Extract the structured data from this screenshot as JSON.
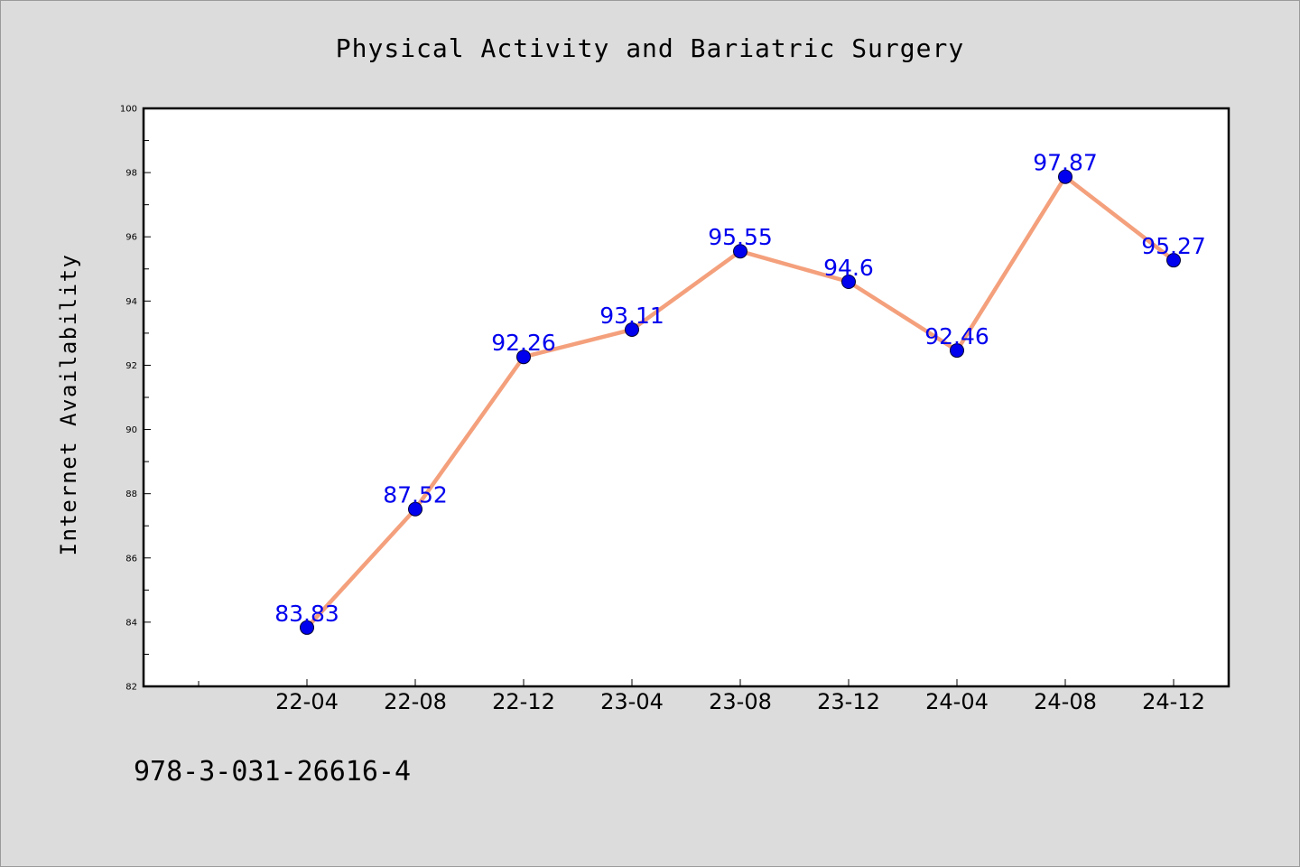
{
  "chart_data": {
    "type": "line",
    "title": "Physical Activity and Bariatric Surgery",
    "xlabel": "",
    "ylabel": "Internet Availability",
    "categories": [
      "22-04",
      "22-08",
      "22-12",
      "23-04",
      "23-08",
      "23-12",
      "24-04",
      "24-08",
      "24-12"
    ],
    "series": [
      {
        "values": [
          83.83,
          87.52,
          92.26,
          93.11,
          95.55,
          94.6,
          92.46,
          97.87,
          95.27
        ],
        "data_labels": [
          "83.83",
          "87.52",
          "92.26",
          "93.11",
          "95.55",
          "94.6",
          "92.46",
          "97.87",
          "95.27"
        ],
        "line_color": "#f4a07c",
        "marker_color": "#0000ee"
      }
    ],
    "ylim": [
      82,
      100
    ],
    "yticks": [
      "82",
      "84",
      "86",
      "88",
      "90",
      "92",
      "94",
      "96",
      "98",
      "100"
    ],
    "grid": false,
    "legend": "none"
  },
  "annotation": "978-3-031-26616-4"
}
